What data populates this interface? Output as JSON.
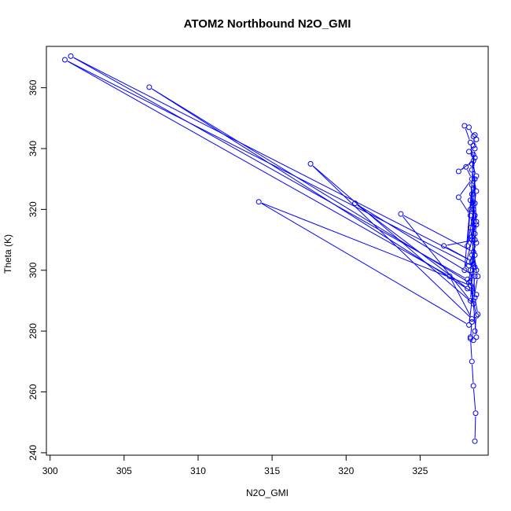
{
  "chart_data": {
    "type": "line",
    "title": "ATOM2 Northbound N2O_GMI",
    "xlabel": "N2O_GMI",
    "ylabel": "Theta (K)",
    "xlim": [
      299.75,
      329.6
    ],
    "ylim": [
      239.2,
      373.6
    ],
    "xticks": [
      300,
      305,
      310,
      315,
      320,
      325
    ],
    "yticks": [
      240,
      260,
      280,
      300,
      320,
      340,
      360
    ],
    "grid": false,
    "legend": "none",
    "colors": {
      "series": "#0000ff",
      "axes": "#000000"
    },
    "series": [
      {
        "marker": "open-circle",
        "line": true,
        "points": [
          [
            328.7,
            243.8
          ],
          [
            328.75,
            253.0
          ],
          [
            328.6,
            262.0
          ],
          [
            328.5,
            270.0
          ],
          [
            328.4,
            278.0
          ],
          [
            328.7,
            280.0
          ],
          [
            328.8,
            285.0
          ],
          [
            328.6,
            290.0
          ],
          [
            328.9,
            298.0
          ],
          [
            328.5,
            305.0
          ],
          [
            328.7,
            312.0
          ],
          [
            328.6,
            320.0
          ],
          [
            328.8,
            326.0
          ],
          [
            328.5,
            333.0
          ],
          [
            328.7,
            340.0
          ],
          [
            328.6,
            344.0
          ],
          [
            328.3,
            347.0
          ],
          [
            328.0,
            347.5
          ],
          [
            328.4,
            342.0
          ],
          [
            328.6,
            336.0
          ],
          [
            327.6,
            332.5
          ],
          [
            328.1,
            334.0
          ],
          [
            328.5,
            330.0
          ],
          [
            327.6,
            324.0
          ],
          [
            328.4,
            318.0
          ],
          [
            328.7,
            310.0
          ],
          [
            326.6,
            308.0
          ],
          [
            328.5,
            303.0
          ],
          [
            301.4,
            370.4
          ],
          [
            328.2,
            297.0
          ],
          [
            328.8,
            292.0
          ],
          [
            306.7,
            360.2
          ],
          [
            328.3,
            296.0
          ],
          [
            328.7,
            301.0
          ],
          [
            301.0,
            369.2
          ],
          [
            327.0,
            298.0
          ],
          [
            328.5,
            284.0
          ],
          [
            317.6,
            335.0
          ],
          [
            328.6,
            289.0
          ],
          [
            328.4,
            295.0
          ],
          [
            314.1,
            322.5
          ],
          [
            328.3,
            282.0
          ],
          [
            328.7,
            298.0
          ],
          [
            320.6,
            322.0
          ],
          [
            328.2,
            294.0
          ],
          [
            328.6,
            306.0
          ],
          [
            323.7,
            318.5
          ],
          [
            328.4,
            290.0
          ],
          [
            328.8,
            316.0
          ],
          [
            328.0,
            300.0
          ],
          [
            328.5,
            328.0
          ],
          [
            328.2,
            308.0
          ],
          [
            328.7,
            322.0
          ],
          [
            328.4,
            314.0
          ],
          [
            328.8,
            300.0
          ],
          [
            328.5,
            310.0
          ],
          [
            328.7,
            330.0
          ],
          [
            328.4,
            320.0
          ],
          [
            328.6,
            338.0
          ],
          [
            328.8,
            315.0
          ],
          [
            328.5,
            325.0
          ],
          [
            328.7,
            305.0
          ],
          [
            328.4,
            300.0
          ],
          [
            328.8,
            278.0
          ],
          [
            328.6,
            277.0
          ],
          [
            328.4,
            277.5
          ],
          [
            328.5,
            283.0
          ],
          [
            328.9,
            285.5
          ],
          [
            328.7,
            291.0
          ],
          [
            328.6,
            302.0
          ],
          [
            328.3,
            301.5
          ],
          [
            328.8,
            309.0
          ],
          [
            328.5,
            311.0
          ],
          [
            328.7,
            318.0
          ],
          [
            328.4,
            323.0
          ],
          [
            328.6,
            327.0
          ],
          [
            328.8,
            331.0
          ],
          [
            328.5,
            335.0
          ],
          [
            328.7,
            337.0
          ],
          [
            328.3,
            339.0
          ],
          [
            328.6,
            341.0
          ],
          [
            328.8,
            343.0
          ],
          [
            328.7,
            344.5
          ]
        ]
      }
    ]
  }
}
